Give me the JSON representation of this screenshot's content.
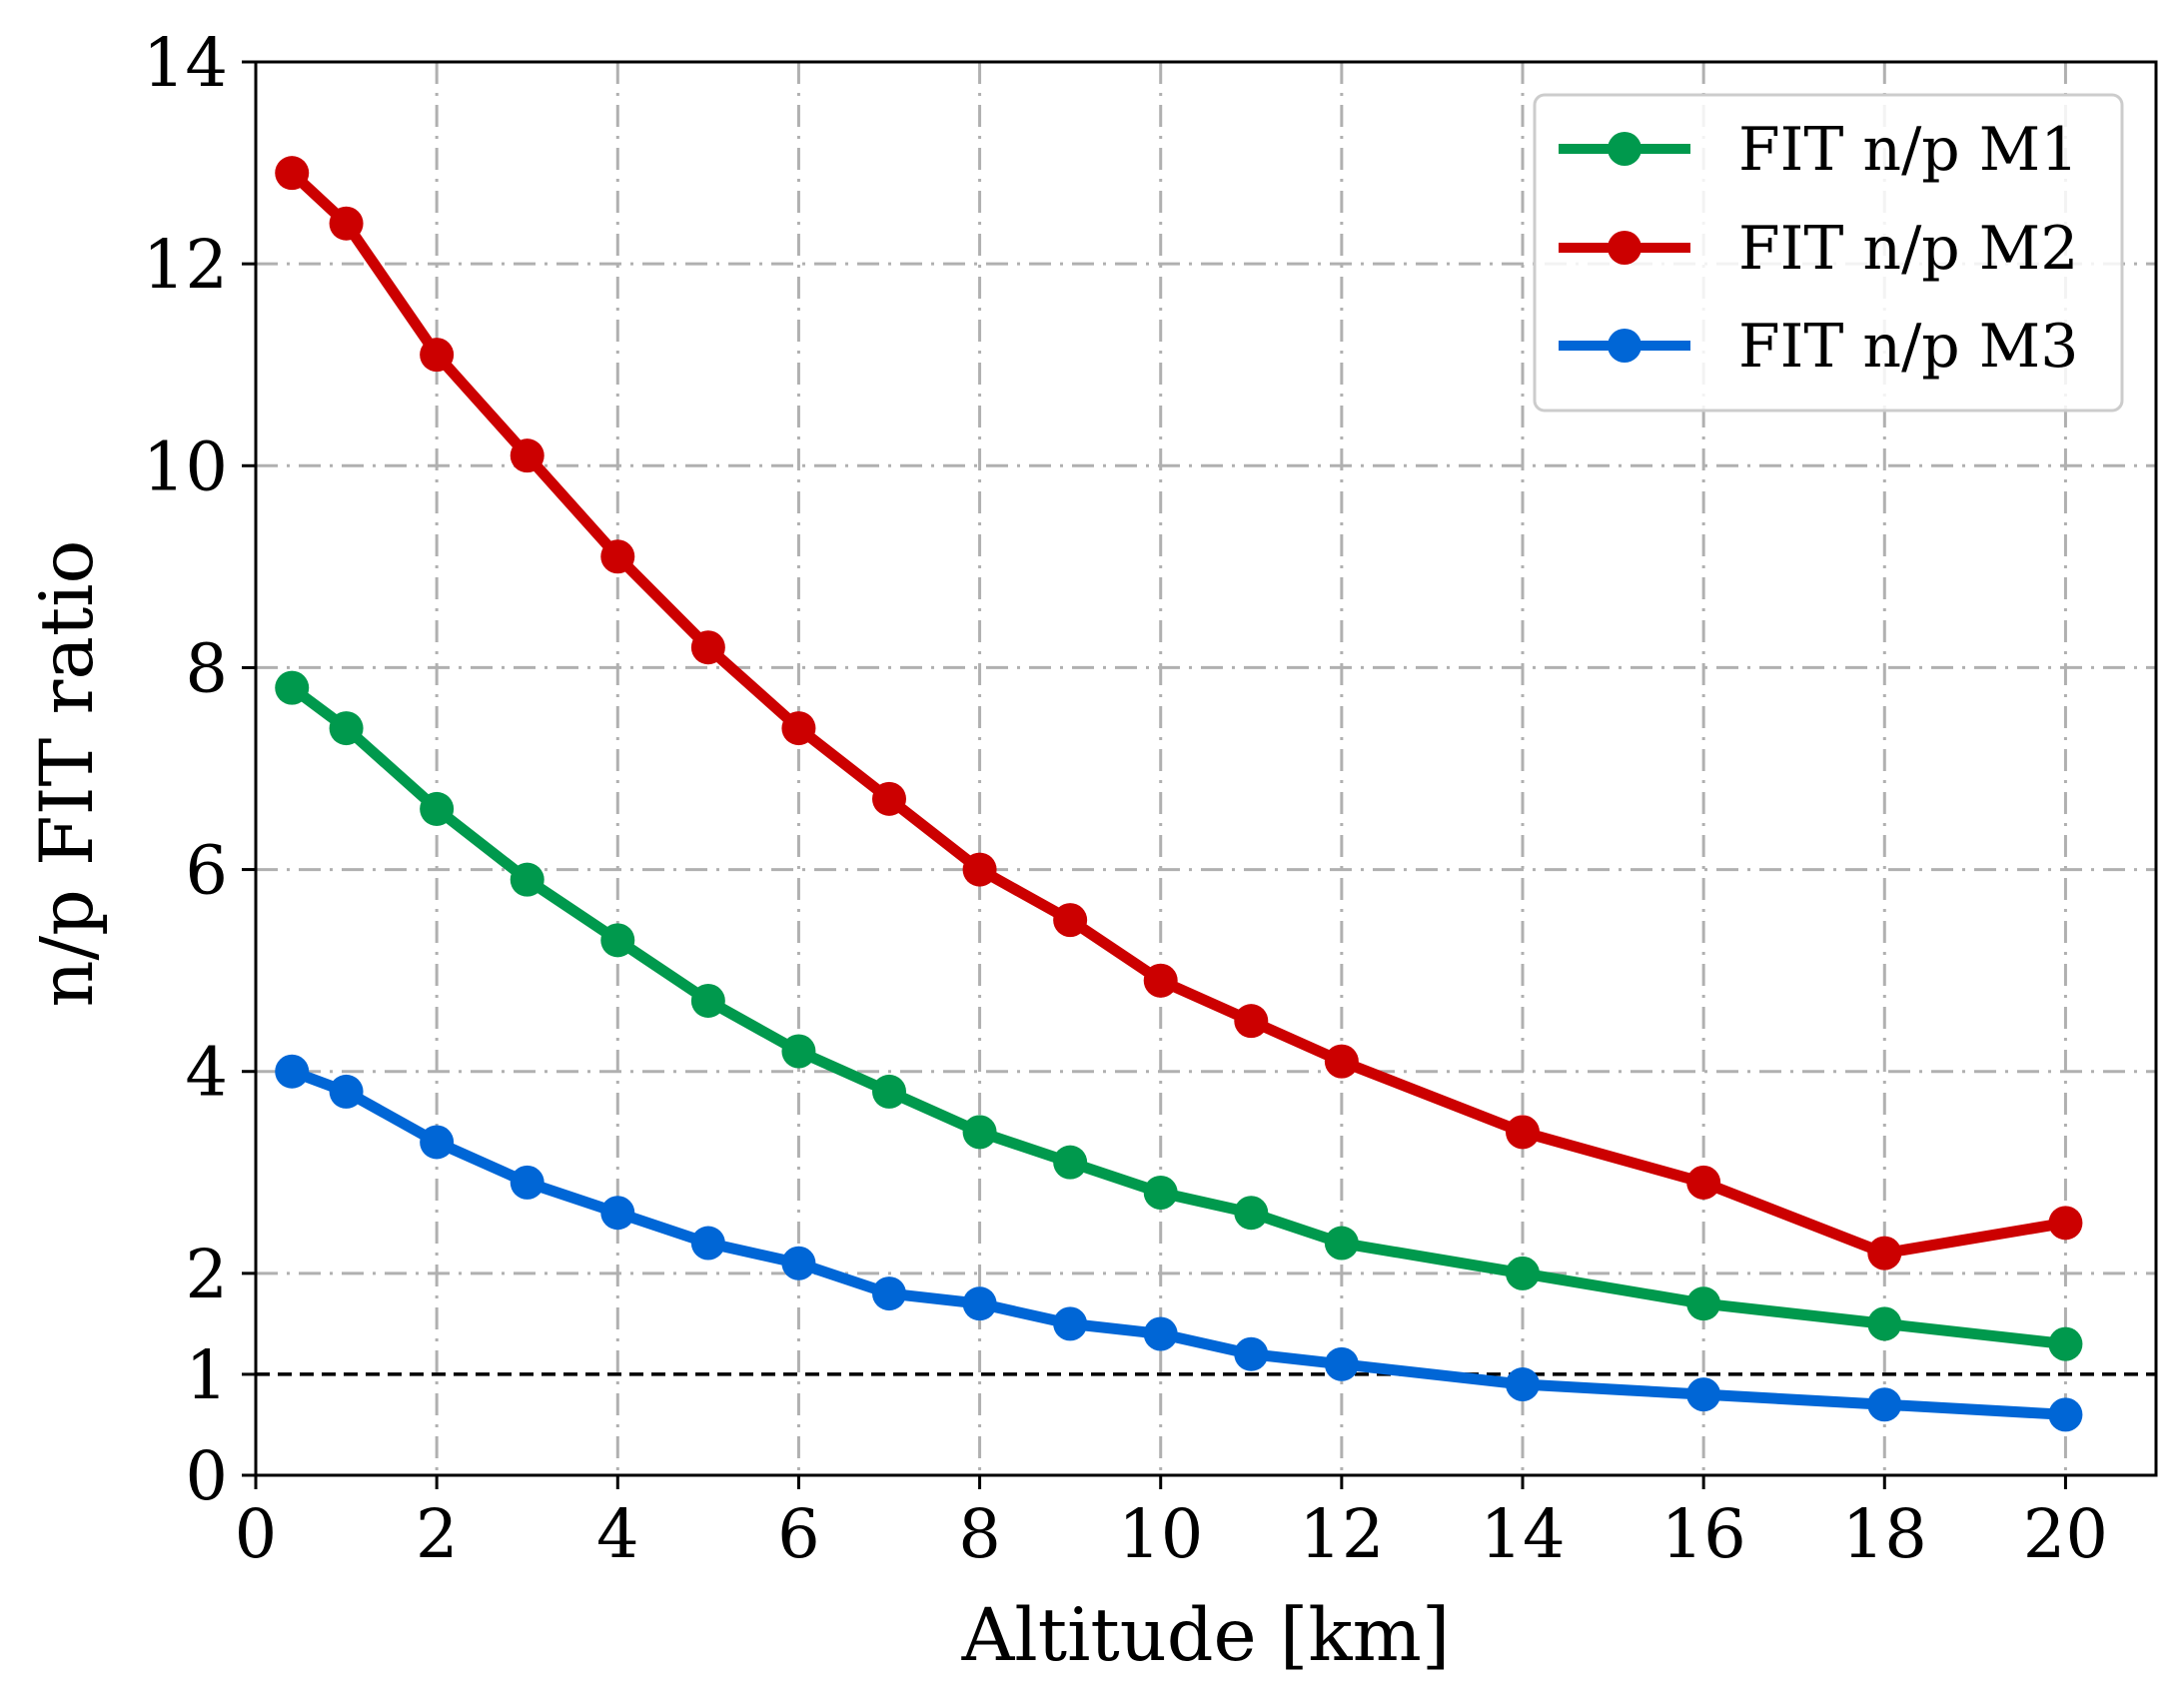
{
  "chart_data": {
    "type": "line",
    "title": "",
    "xlabel": "Altitude [km]",
    "ylabel": "n/p FIT ratio",
    "xlim": [
      0,
      21
    ],
    "ylim": [
      0,
      14
    ],
    "xticks": [
      0,
      2,
      4,
      6,
      8,
      10,
      12,
      14,
      16,
      18,
      20
    ],
    "yticks": [
      0,
      1,
      2,
      4,
      6,
      8,
      10,
      12,
      14
    ],
    "grid": true,
    "legend_position": "top-right",
    "reference_line": {
      "y": 1,
      "style": "dashed",
      "color": "#000000"
    },
    "series": [
      {
        "name": "FIT n/p M1",
        "color": "#00994d",
        "x": [
          0.4,
          1,
          2,
          3,
          4,
          5,
          6,
          7,
          8,
          9,
          10,
          11,
          12,
          14,
          16,
          18,
          20
        ],
        "y": [
          7.8,
          7.4,
          6.6,
          5.9,
          5.3,
          4.7,
          4.2,
          3.8,
          3.4,
          3.1,
          2.8,
          2.6,
          2.3,
          2.0,
          1.7,
          1.5,
          1.3
        ]
      },
      {
        "name": "FIT n/p M2",
        "color": "#cc0000",
        "x": [
          0.4,
          1,
          2,
          3,
          4,
          5,
          6,
          7,
          8,
          9,
          10,
          11,
          12,
          14,
          16,
          18,
          20
        ],
        "y": [
          12.9,
          12.4,
          11.1,
          10.1,
          9.1,
          8.2,
          7.4,
          6.7,
          6.0,
          5.5,
          4.9,
          4.5,
          4.1,
          3.4,
          2.9,
          2.2,
          2.5
        ]
      },
      {
        "name": "FIT n/p M3",
        "color": "#0066d6",
        "x": [
          0.4,
          1,
          2,
          3,
          4,
          5,
          6,
          7,
          8,
          9,
          10,
          11,
          12,
          14,
          16,
          18,
          20
        ],
        "y": [
          4.0,
          3.8,
          3.3,
          2.9,
          2.6,
          2.3,
          2.1,
          1.8,
          1.7,
          1.5,
          1.4,
          1.2,
          1.1,
          0.9,
          0.8,
          0.7,
          0.6
        ]
      }
    ]
  }
}
